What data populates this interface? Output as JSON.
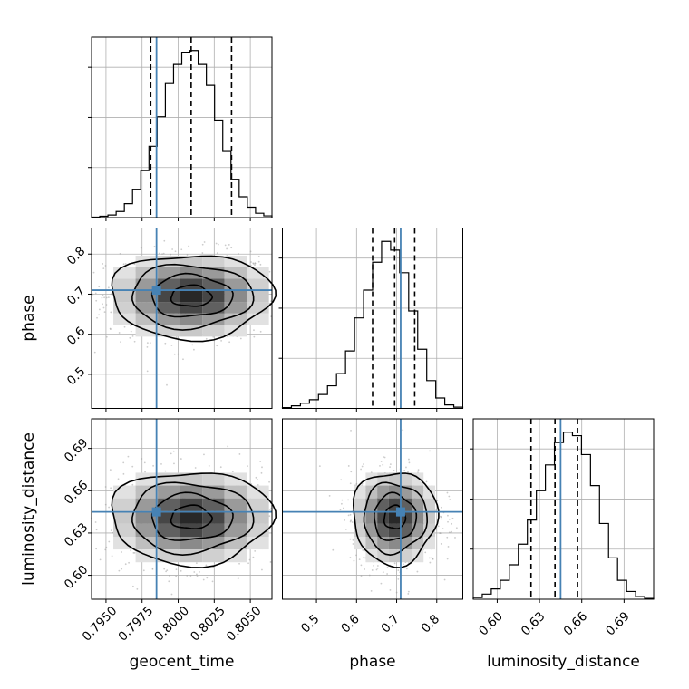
{
  "chart_data": {
    "type": "corner",
    "parameters": [
      "geocent_time",
      "phase",
      "luminosity_distance"
    ],
    "truths": {
      "geocent_time": 0.7985,
      "phase": 0.71,
      "luminosity_distance": 0.645
    },
    "quantiles": {
      "geocent_time": [
        0.7981,
        0.8009,
        0.8037
      ],
      "phase": [
        0.64,
        0.695,
        0.745
      ],
      "luminosity_distance": [
        0.624,
        0.641,
        0.657
      ]
    },
    "ranges": {
      "geocent_time": [
        0.794,
        0.8065
      ],
      "phase": [
        0.415,
        0.865
      ],
      "luminosity_distance": [
        0.583,
        0.711
      ]
    },
    "ticks": {
      "geocent_time": {
        "values": [
          0.795,
          0.7975,
          0.8,
          0.8025,
          0.805
        ],
        "labels": [
          "0.7950",
          "0.7975",
          "0.8000",
          "0.8025",
          "0.8050"
        ]
      },
      "phase": {
        "values": [
          0.5,
          0.6,
          0.7,
          0.8
        ],
        "labels": [
          "0.5",
          "0.6",
          "0.7",
          "0.8"
        ]
      },
      "luminosity_distance": {
        "values": [
          0.6,
          0.63,
          0.66,
          0.69
        ],
        "labels": [
          "0.60",
          "0.63",
          "0.66",
          "0.69"
        ]
      }
    },
    "histograms": {
      "geocent_time": [
        0.3,
        0.8,
        1.5,
        3.5,
        8,
        16,
        27,
        41,
        58,
        77,
        88,
        95,
        96,
        88,
        76,
        56,
        38,
        22,
        12,
        6,
        2.5,
        1
      ],
      "phase": [
        0.5,
        1.5,
        3,
        5,
        8,
        13,
        20,
        33,
        52,
        68,
        84,
        96,
        91,
        78,
        56,
        34,
        16,
        6,
        2,
        0.7
      ],
      "luminosity_distance": [
        1,
        3,
        6,
        11,
        20,
        32,
        46,
        63,
        78,
        91,
        97,
        95,
        84,
        66,
        44,
        24,
        11,
        4.5,
        1.5,
        0.5
      ]
    },
    "correlations": {
      "phase|geocent_time": 0.0,
      "luminosity_distance|geocent_time": 0.0,
      "luminosity_distance|phase": 0.0
    },
    "colors": {
      "truth": "#4682b4",
      "contour": "#000000",
      "grid": "#b0b0b0",
      "points": "#9a9a9a"
    },
    "grid": true
  }
}
